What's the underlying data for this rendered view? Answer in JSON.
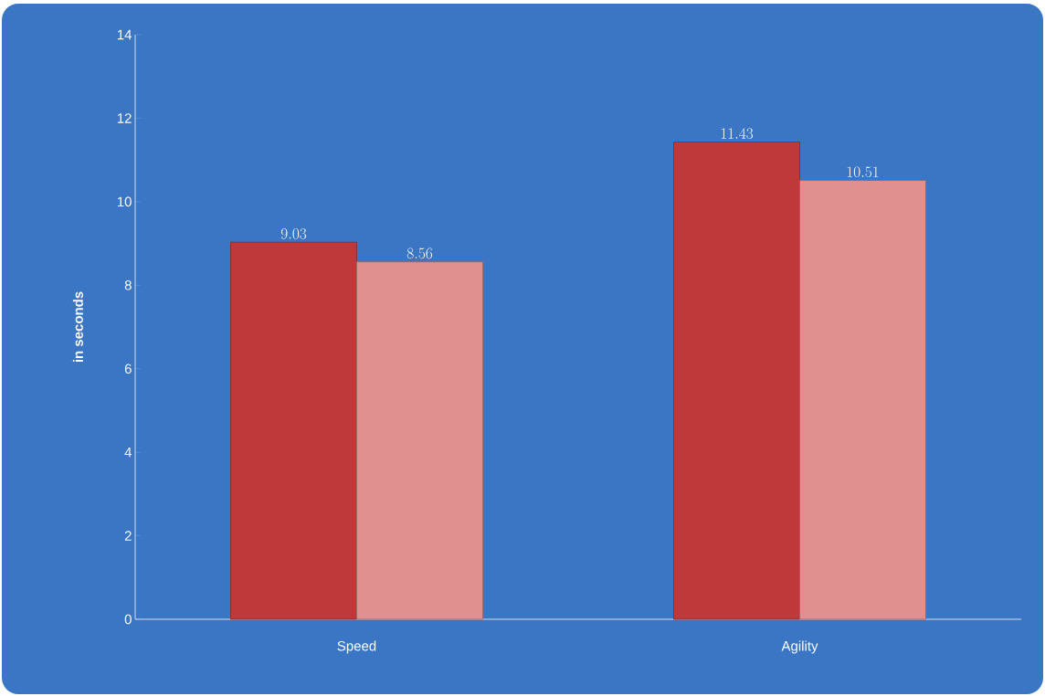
{
  "chart_data": {
    "type": "bar",
    "ylabel": "in seconds",
    "categories": [
      "Speed",
      "Agility"
    ],
    "series": [
      {
        "color": "#c0393a",
        "values": [
          9.03,
          11.43
        ]
      },
      {
        "color": "#e0908e",
        "values": [
          8.56,
          10.51
        ]
      }
    ],
    "ylim": [
      0,
      14
    ],
    "yticks": [
      0,
      2,
      4,
      6,
      8,
      10,
      12,
      14
    ],
    "data_labels": true
  }
}
